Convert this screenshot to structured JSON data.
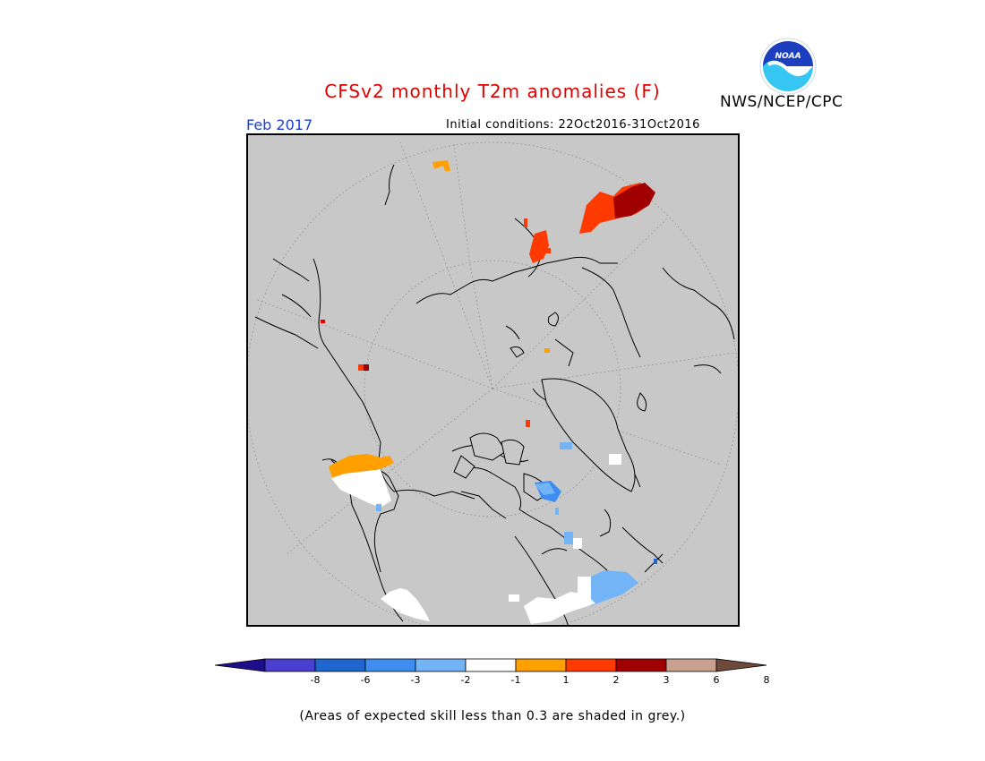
{
  "header": {
    "title": "CFSv2 monthly T2m anomalies (F)",
    "date": "Feb 2017",
    "initial_conditions": "Initial conditions: 22Oct2016-31Oct2016",
    "agency": "NWS/NCEP/CPC",
    "logo_text": "NOAA"
  },
  "legend": {
    "colors": [
      "#1f0e8c",
      "#4a3fd0",
      "#1f66d0",
      "#3d8ef0",
      "#72b4f6",
      "#ffffff",
      "#ffa000",
      "#ff3a00",
      "#a00000",
      "#c8a090",
      "#6e4a3a"
    ],
    "ticks": [
      "-8",
      "-6",
      "-3",
      "-2",
      "-1",
      "1",
      "2",
      "3",
      "6",
      "8"
    ]
  },
  "footnote": "(Areas of expected skill less than 0.3 are shaded in grey.)",
  "map": {
    "projection": "polar stereographic (north)",
    "background_color": "#c8c8c8"
  }
}
